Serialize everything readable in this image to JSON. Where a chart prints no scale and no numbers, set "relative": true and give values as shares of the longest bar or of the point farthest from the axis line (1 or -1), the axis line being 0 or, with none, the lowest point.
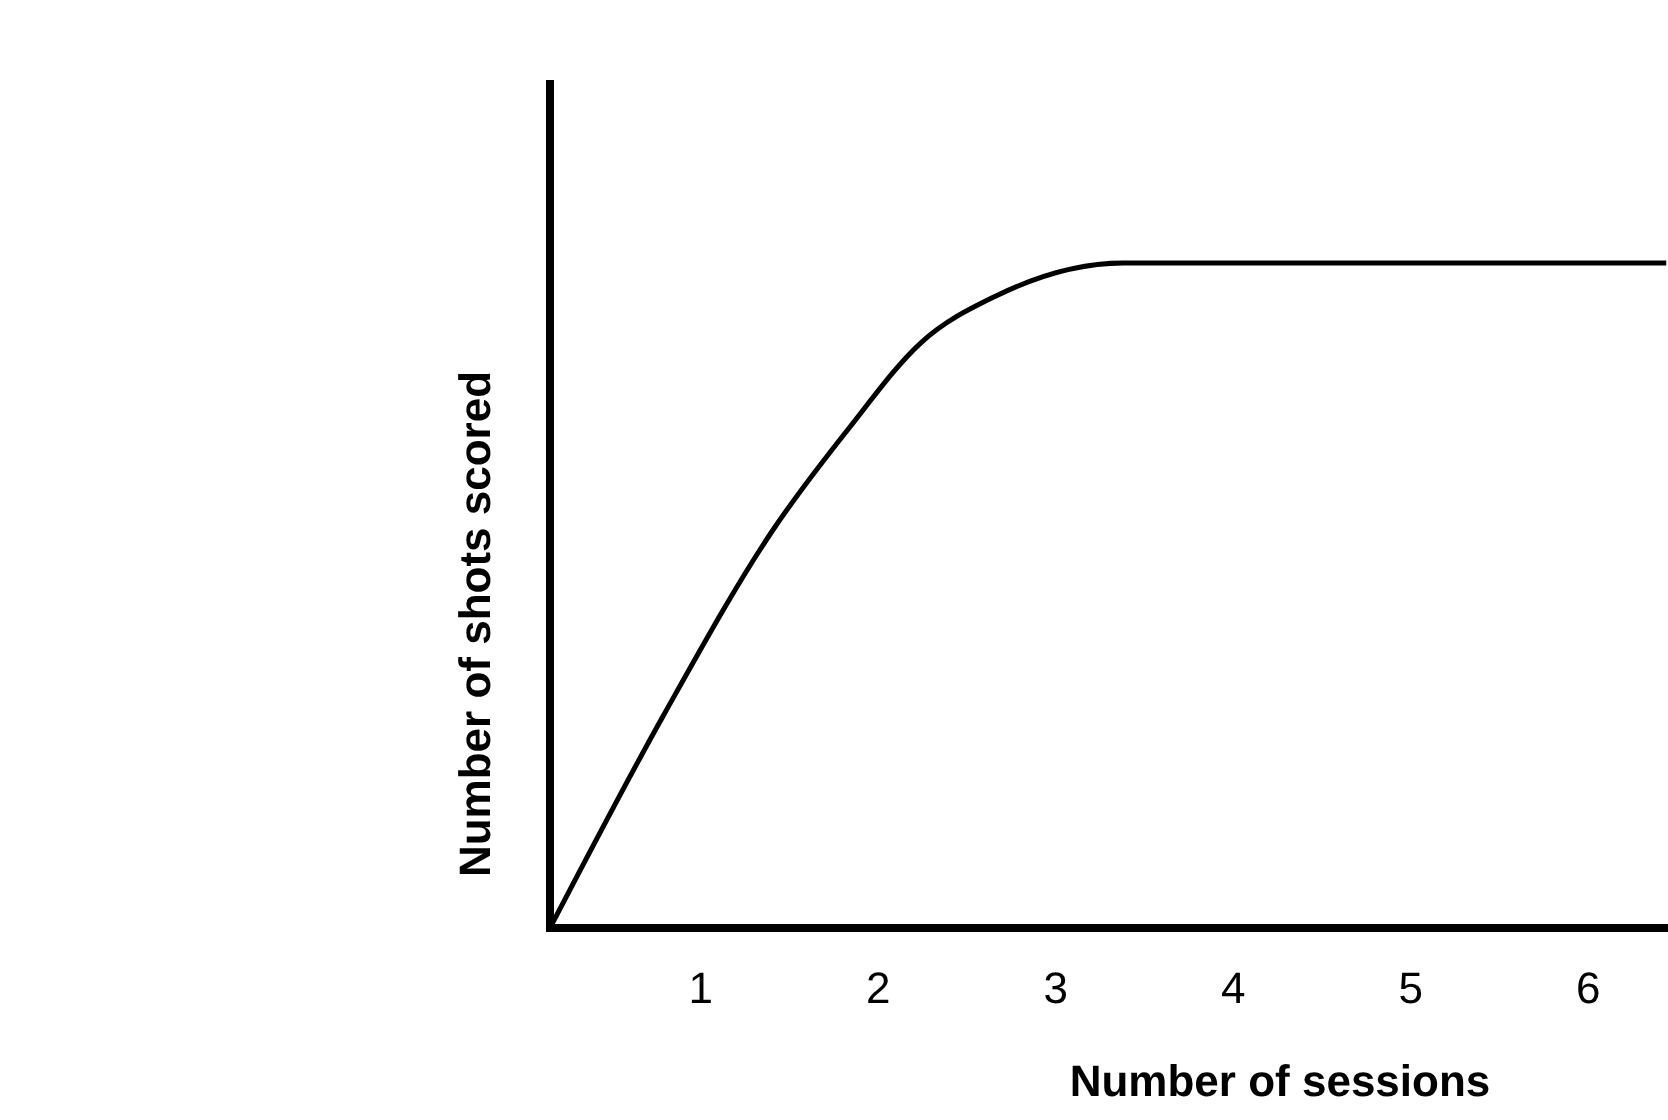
{
  "chart_data": {
    "type": "line",
    "relative": true,
    "xlabel": "Number of sessions",
    "ylabel": "Number of shots scored",
    "x": [
      0.15,
      0.79,
      1.41,
      1.83,
      2.24,
      2.66,
      3.38,
      6.44
    ],
    "values": [
      0,
      0.32,
      0.6,
      0.75,
      0.88,
      0.95,
      1,
      1
    ],
    "color": "#000000",
    "xlim": [
      0.15,
      6.45
    ],
    "xticks": [
      1,
      2,
      3,
      4,
      5,
      6
    ],
    "grid": false,
    "marker": "none",
    "line_style": "solid"
  }
}
